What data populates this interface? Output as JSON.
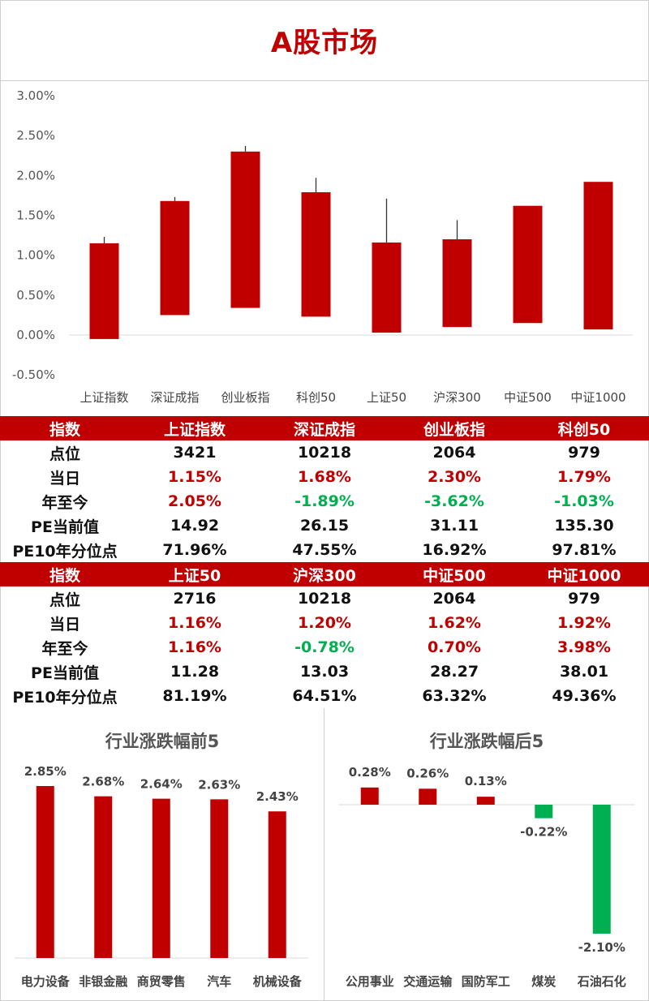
{
  "title": "A股市场",
  "colors": {
    "up": "#c00000",
    "down": "#00b050",
    "header_bg": "#c00000",
    "header_text": "#ffffff"
  },
  "chart_data": [
    {
      "type": "bar",
      "subtype": "floating-bar-with-high-whisker",
      "title": "",
      "categories": [
        "上证指数",
        "深证成指",
        "创业板指",
        "科创50",
        "上证50",
        "沪深300",
        "中证500",
        "中证1000"
      ],
      "series": [
        {
          "name": "low",
          "values": [
            -0.05,
            0.25,
            0.34,
            0.23,
            0.03,
            0.1,
            0.15,
            0.07
          ]
        },
        {
          "name": "high",
          "values": [
            1.15,
            1.68,
            2.3,
            1.79,
            1.16,
            1.2,
            1.62,
            1.92
          ]
        },
        {
          "name": "whisker",
          "values": [
            1.23,
            1.73,
            2.37,
            1.97,
            1.71,
            1.44,
            1.62,
            1.92
          ]
        }
      ],
      "yticks": [
        "3.00%",
        "2.50%",
        "2.00%",
        "1.50%",
        "1.00%",
        "0.50%",
        "0.00%",
        "-0.50%"
      ],
      "ylim": [
        -0.5,
        3.0
      ],
      "color": "#c00000",
      "grid": false,
      "legend": "none"
    },
    {
      "type": "bar",
      "title": "行业涨跌幅前5",
      "categories": [
        "电力设备",
        "非银金融",
        "商贸零售",
        "汽车",
        "机械设备"
      ],
      "values": [
        2.85,
        2.68,
        2.64,
        2.63,
        2.43
      ],
      "labels": [
        "2.85%",
        "2.68%",
        "2.64%",
        "2.63%",
        "2.43%"
      ],
      "color": "#c00000"
    },
    {
      "type": "bar",
      "title": "行业涨跌幅后5",
      "categories": [
        "公用事业",
        "交通运输",
        "国防军工",
        "煤炭",
        "石油石化"
      ],
      "values": [
        0.28,
        0.26,
        0.13,
        -0.22,
        -2.1
      ],
      "labels": [
        "0.28%",
        "0.26%",
        "0.13%",
        "-0.22%",
        "-2.10%"
      ],
      "colors": [
        "#c00000",
        "#c00000",
        "#c00000",
        "#00b050",
        "#00b050"
      ]
    }
  ],
  "tables": [
    {
      "header": [
        "指数",
        "上证指数",
        "深证成指",
        "创业板指",
        "科创50"
      ],
      "rows": [
        {
          "label": "点位",
          "values": [
            "3421",
            "10218",
            "2064",
            "979"
          ],
          "signs": [
            "n",
            "n",
            "n",
            "n"
          ]
        },
        {
          "label": "当日",
          "values": [
            "1.15%",
            "1.68%",
            "2.30%",
            "1.79%"
          ],
          "signs": [
            "up",
            "up",
            "up",
            "up"
          ]
        },
        {
          "label": "年至今",
          "values": [
            "2.05%",
            "-1.89%",
            "-3.62%",
            "-1.03%"
          ],
          "signs": [
            "up",
            "down",
            "down",
            "down"
          ]
        },
        {
          "label": "PE当前值",
          "values": [
            "14.92",
            "26.15",
            "31.11",
            "135.30"
          ],
          "signs": [
            "n",
            "n",
            "n",
            "n"
          ]
        },
        {
          "label": "PE10年分位点",
          "values": [
            "71.96%",
            "47.55%",
            "16.92%",
            "97.81%"
          ],
          "signs": [
            "n",
            "n",
            "n",
            "n"
          ]
        }
      ]
    },
    {
      "header": [
        "指数",
        "上证50",
        "沪深300",
        "中证500",
        "中证1000"
      ],
      "rows": [
        {
          "label": "点位",
          "values": [
            "2716",
            "10218",
            "2064",
            "979"
          ],
          "signs": [
            "n",
            "n",
            "n",
            "n"
          ]
        },
        {
          "label": "当日",
          "values": [
            "1.16%",
            "1.20%",
            "1.62%",
            "1.92%"
          ],
          "signs": [
            "up",
            "up",
            "up",
            "up"
          ]
        },
        {
          "label": "年至今",
          "values": [
            "1.16%",
            "-0.78%",
            "0.70%",
            "3.98%"
          ],
          "signs": [
            "up",
            "down",
            "up",
            "up"
          ]
        },
        {
          "label": "PE当前值",
          "values": [
            "11.28",
            "13.03",
            "28.27",
            "38.01"
          ],
          "signs": [
            "n",
            "n",
            "n",
            "n"
          ]
        },
        {
          "label": "PE10年分位点",
          "values": [
            "81.19%",
            "64.51%",
            "63.32%",
            "49.36%"
          ],
          "signs": [
            "n",
            "n",
            "n",
            "n"
          ]
        }
      ]
    }
  ]
}
